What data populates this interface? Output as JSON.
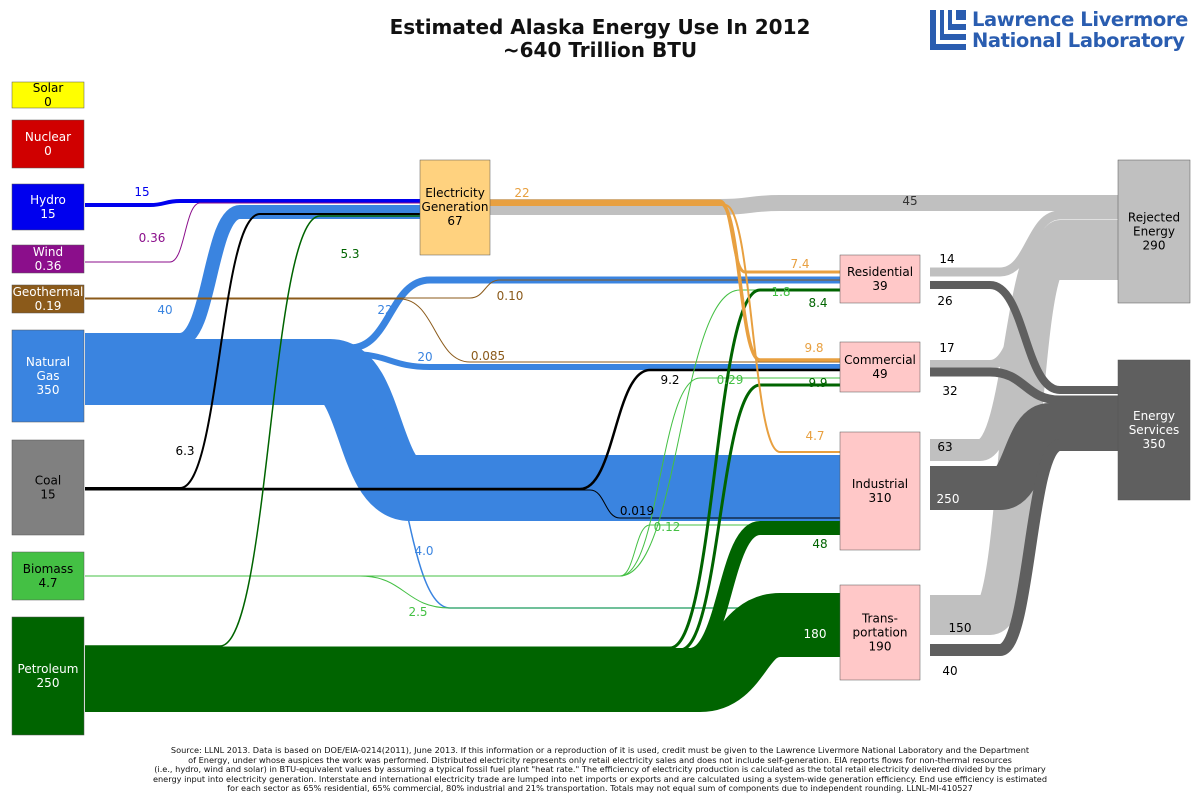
{
  "title": {
    "line1": "Estimated Alaska Energy Use In 2012",
    "line2": "~640 Trillion BTU"
  },
  "logo": {
    "line1": "Lawrence Livermore",
    "line2": "National Laboratory",
    "color": "#2a5db0"
  },
  "sources": [
    {
      "id": "solar",
      "name": "Solar",
      "value": "0",
      "color": "#ffff00",
      "text_color": "#000000"
    },
    {
      "id": "nuclear",
      "name": "Nuclear",
      "value": "0",
      "color": "#d00000",
      "text_color": "#ffffff"
    },
    {
      "id": "hydro",
      "name": "Hydro",
      "value": "15",
      "color": "#0000ee",
      "text_color": "#ffffff"
    },
    {
      "id": "wind",
      "name": "Wind",
      "value": "0.36",
      "color": "#8b0e8b",
      "text_color": "#ffffff"
    },
    {
      "id": "geothermal",
      "name": "Geothermal",
      "value": "0.19",
      "color": "#8b5a1a",
      "text_color": "#ffffff"
    },
    {
      "id": "natural-gas",
      "name": "Natural Gas",
      "lines": [
        "Natural",
        "Gas"
      ],
      "value": "350",
      "color": "#3a84e0",
      "text_color": "#ffffff"
    },
    {
      "id": "coal",
      "name": "Coal",
      "value": "15",
      "color": "#808080",
      "text_color": "#000000"
    },
    {
      "id": "biomass",
      "name": "Biomass",
      "value": "4.7",
      "color": "#44c044",
      "text_color": "#000000"
    },
    {
      "id": "petroleum",
      "name": "Petroleum",
      "value": "250",
      "color": "#006400",
      "text_color": "#ffffff"
    }
  ],
  "electricity": {
    "lines": [
      "Electricity",
      "Generation"
    ],
    "value": "67",
    "color": "#ffd27f"
  },
  "sectors": [
    {
      "id": "residential",
      "lines": [
        "Residential"
      ],
      "value": "39",
      "color": "#ffc8c8"
    },
    {
      "id": "commercial",
      "lines": [
        "Commercial"
      ],
      "value": "49",
      "color": "#ffc8c8"
    },
    {
      "id": "industrial",
      "lines": [
        "Industrial"
      ],
      "value": "310",
      "color": "#ffc8c8"
    },
    {
      "id": "transportation",
      "lines": [
        "Trans-",
        "portation"
      ],
      "value": "190",
      "color": "#ffc8c8"
    }
  ],
  "outputs": [
    {
      "id": "rejected",
      "lines": [
        "Rejected",
        "Energy"
      ],
      "value": "290",
      "color": "#c0c0c0",
      "text_color": "#000000"
    },
    {
      "id": "services",
      "lines": [
        "Energy",
        "Services"
      ],
      "value": "350",
      "color": "#5f5f5f",
      "text_color": "#ffffff"
    }
  ],
  "flow_labels": [
    {
      "id": "hydro-elec",
      "text": "15",
      "color": "#0000ee"
    },
    {
      "id": "wind-elec",
      "text": "0.36",
      "color": "#8b0e8b"
    },
    {
      "id": "gas-elec",
      "text": "40",
      "color": "#3a84e0"
    },
    {
      "id": "coal-elec",
      "text": "6.3",
      "color": "#000000"
    },
    {
      "id": "petro-elec",
      "text": "5.3",
      "color": "#006400"
    },
    {
      "id": "elec-rejected",
      "text": "45",
      "color": "#333333"
    },
    {
      "id": "elec-out",
      "text": "22",
      "color": "#e8a040"
    },
    {
      "id": "elec-res",
      "text": "7.4",
      "color": "#e8a040"
    },
    {
      "id": "elec-com",
      "text": "9.8",
      "color": "#e8a040"
    },
    {
      "id": "elec-ind",
      "text": "4.7",
      "color": "#e8a040"
    },
    {
      "id": "gas-res",
      "text": "22",
      "color": "#3a84e0"
    },
    {
      "id": "gas-com",
      "text": "20",
      "color": "#3a84e0"
    },
    {
      "id": "gas-trans",
      "text": "4.0",
      "color": "#3a84e0"
    },
    {
      "id": "geo-res",
      "text": "0.10",
      "color": "#8b5a1a"
    },
    {
      "id": "geo-com",
      "text": "0.085",
      "color": "#8b5a1a"
    },
    {
      "id": "bio-res",
      "text": "1.8",
      "color": "#44c044"
    },
    {
      "id": "bio-com",
      "text": "0.29",
      "color": "#44c044"
    },
    {
      "id": "bio-ind",
      "text": "0.12",
      "color": "#44c044"
    },
    {
      "id": "bio-trans",
      "text": "2.5",
      "color": "#44c044"
    },
    {
      "id": "petro-res",
      "text": "8.4",
      "color": "#006400"
    },
    {
      "id": "petro-com",
      "text": "9.9",
      "color": "#006400"
    },
    {
      "id": "petro-ind",
      "text": "48",
      "color": "#006400"
    },
    {
      "id": "petro-trans",
      "text": "180",
      "color": "#ffffff"
    },
    {
      "id": "coal-com",
      "text": "9.2",
      "color": "#000000"
    },
    {
      "id": "coal-ind",
      "text": "0.019",
      "color": "#000000"
    },
    {
      "id": "res-rejected",
      "text": "14",
      "color": "#000000"
    },
    {
      "id": "res-services",
      "text": "26",
      "color": "#000000"
    },
    {
      "id": "com-rejected",
      "text": "17",
      "color": "#000000"
    },
    {
      "id": "com-services",
      "text": "32",
      "color": "#000000"
    },
    {
      "id": "ind-rejected",
      "text": "63",
      "color": "#000000"
    },
    {
      "id": "ind-services",
      "text": "250",
      "color": "#ffffff"
    },
    {
      "id": "trans-rejected",
      "text": "150",
      "color": "#000000"
    },
    {
      "id": "trans-services",
      "text": "40",
      "color": "#000000"
    }
  ],
  "source_note": [
    "Source: LLNL 2013. Data is based on DOE/EIA-0214(2011), June 2013. If this information or a reproduction of it is used, credit must be given to the Lawrence Livermore National Laboratory and the Department",
    "of Energy, under whose auspices the work was performed. Distributed electricity represents only retail electricity sales and does not include self-generation.  EIA reports flows for non-thermal resources",
    "(i.e., hydro, wind and solar) in BTU-equivalent values by assuming a typical fossil fuel plant \"heat rate.\"  The efficiency of electricity production is calculated as the total retail electricity delivered divided by the primary",
    "energy input into electricity generation.  Interstate and international electricity trade are lumped into net imports or exports and are calculated using a system-wide generation efficiency.  End use efficiency is estimated",
    "for each sector as 65% residential, 65% commercial, 80% industrial and 21% transportation. Totals may not equal sum of components due to independent rounding. LLNL-MI-410527"
  ]
}
